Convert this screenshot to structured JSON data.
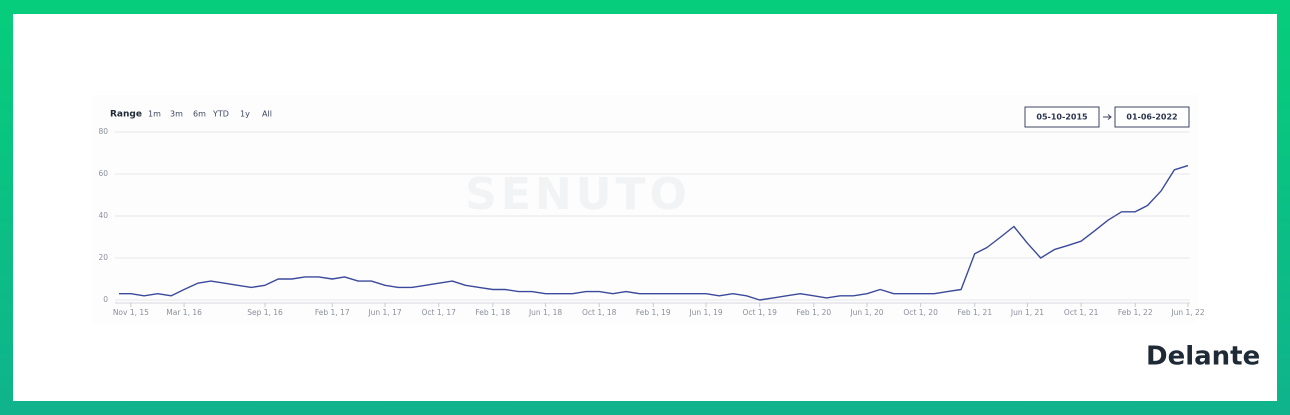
{
  "chart_data": {
    "type": "line",
    "range_selector": {
      "label": "Range",
      "buttons": [
        "1m",
        "3m",
        "6m",
        "YTD",
        "1y",
        "All"
      ]
    },
    "date_range": {
      "from": "05-10-2015",
      "to": "01-06-2022"
    },
    "watermark": "SENUTO",
    "color": "#3c4a9b",
    "grid": true,
    "x": [
      "2015-10-05",
      "2015-11-01",
      "2015-12-01",
      "2016-01-01",
      "2016-02-01",
      "2016-03-01",
      "2016-04-01",
      "2016-05-01",
      "2016-06-01",
      "2016-07-01",
      "2016-08-01",
      "2016-09-01",
      "2016-10-01",
      "2016-11-01",
      "2016-12-01",
      "2017-01-01",
      "2017-02-01",
      "2017-03-01",
      "2017-04-01",
      "2017-05-01",
      "2017-06-01",
      "2017-07-01",
      "2017-08-01",
      "2017-09-01",
      "2017-10-01",
      "2017-11-01",
      "2017-12-01",
      "2018-01-01",
      "2018-02-01",
      "2018-03-01",
      "2018-04-01",
      "2018-05-01",
      "2018-06-01",
      "2018-07-01",
      "2018-08-01",
      "2018-09-01",
      "2018-10-01",
      "2018-11-01",
      "2018-12-01",
      "2019-01-01",
      "2019-02-01",
      "2019-03-01",
      "2019-04-01",
      "2019-05-01",
      "2019-06-01",
      "2019-07-01",
      "2019-08-01",
      "2019-09-01",
      "2019-10-01",
      "2019-11-01",
      "2019-12-01",
      "2020-01-01",
      "2020-02-01",
      "2020-03-01",
      "2020-04-01",
      "2020-05-01",
      "2020-06-01",
      "2020-07-01",
      "2020-08-01",
      "2020-09-01",
      "2020-10-01",
      "2020-11-01",
      "2020-12-01",
      "2021-01-01",
      "2021-02-01",
      "2021-03-01",
      "2021-04-01",
      "2021-05-01",
      "2021-06-01",
      "2021-07-01",
      "2021-08-01",
      "2021-09-01",
      "2021-10-01",
      "2021-11-01",
      "2021-12-01",
      "2022-01-01",
      "2022-02-01",
      "2022-03-01",
      "2022-04-01",
      "2022-05-01",
      "2022-06-01"
    ],
    "values": [
      3,
      3,
      2,
      3,
      2,
      5,
      8,
      9,
      8,
      7,
      6,
      7,
      10,
      10,
      11,
      11,
      10,
      11,
      9,
      9,
      7,
      6,
      6,
      7,
      8,
      9,
      7,
      6,
      5,
      5,
      4,
      4,
      3,
      3,
      3,
      4,
      4,
      3,
      4,
      3,
      3,
      3,
      3,
      3,
      3,
      2,
      3,
      2,
      0,
      1,
      2,
      3,
      2,
      1,
      2,
      2,
      3,
      5,
      3,
      3,
      3,
      3,
      4,
      5,
      22,
      25,
      30,
      35,
      27,
      20,
      24,
      26,
      28,
      33,
      38,
      42,
      42,
      45,
      52,
      62,
      64
    ],
    "xlim": [
      "2015-10-05",
      "2022-06-01"
    ],
    "xticks": [
      {
        "value": "2015-11-01",
        "label": "Nov 1, 15"
      },
      {
        "value": "2016-03-01",
        "label": "Mar 1, 16"
      },
      {
        "value": "2016-09-01",
        "label": "Sep 1, 16"
      },
      {
        "value": "2017-02-01",
        "label": "Feb 1, 17"
      },
      {
        "value": "2017-06-01",
        "label": "Jun 1, 17"
      },
      {
        "value": "2017-10-01",
        "label": "Oct 1, 17"
      },
      {
        "value": "2018-02-01",
        "label": "Feb 1, 18"
      },
      {
        "value": "2018-06-01",
        "label": "Jun 1, 18"
      },
      {
        "value": "2018-10-01",
        "label": "Oct 1, 18"
      },
      {
        "value": "2019-02-01",
        "label": "Feb 1, 19"
      },
      {
        "value": "2019-06-01",
        "label": "Jun 1, 19"
      },
      {
        "value": "2019-10-01",
        "label": "Oct 1, 19"
      },
      {
        "value": "2020-02-01",
        "label": "Feb 1, 20"
      },
      {
        "value": "2020-06-01",
        "label": "Jun 1, 20"
      },
      {
        "value": "2020-10-01",
        "label": "Oct 1, 20"
      },
      {
        "value": "2021-02-01",
        "label": "Feb 1, 21"
      },
      {
        "value": "2021-06-01",
        "label": "Jun 1, 21"
      },
      {
        "value": "2021-10-01",
        "label": "Oct 1, 21"
      },
      {
        "value": "2022-02-01",
        "label": "Feb 1, 22"
      },
      {
        "value": "2022-06-01",
        "label": "Jun 1, 22"
      }
    ],
    "ylim": [
      0,
      80
    ],
    "yticks": [
      0,
      20,
      40,
      60,
      80
    ]
  },
  "branding": {
    "logo": "Delante"
  }
}
